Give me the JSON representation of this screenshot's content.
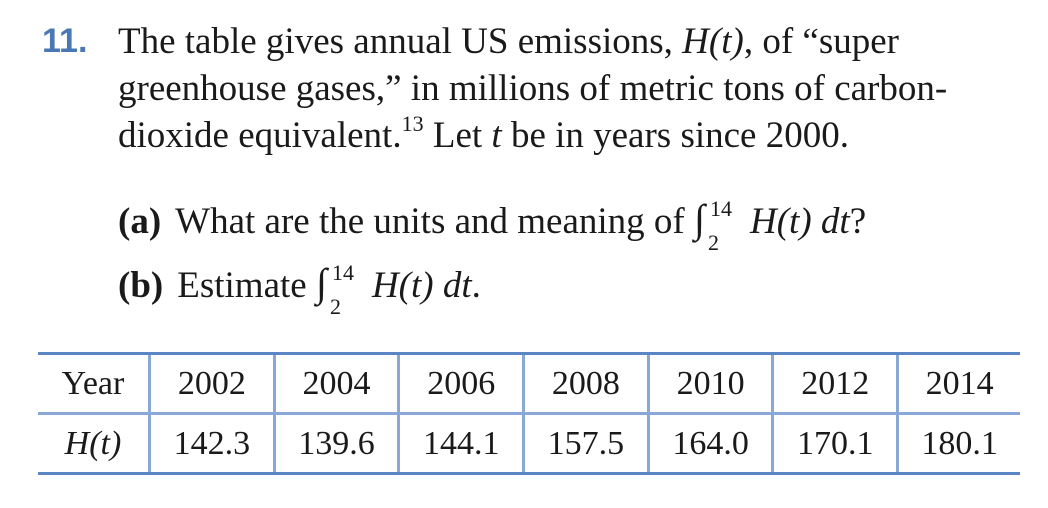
{
  "problem": {
    "number": "11.",
    "stem_lines": [
      "The table gives annual US emissions, ",
      "greenhouse gases,” in millions of metric tons of carbon-",
      "dioxide equivalent."
    ],
    "func": "H(t)",
    "after_func": ", of “super",
    "footnote": "13",
    "stem_tail_1": " Let ",
    "var_t": "t",
    "stem_tail_2": " be in years since 2000.",
    "part_a": {
      "label": "(a)",
      "text": "What are the units and meaning of",
      "integral_sign": "∫",
      "upper": "14",
      "lower": "2",
      "integrand": "H(t) dt",
      "end": "?"
    },
    "part_b": {
      "label": "(b)",
      "text": "Estimate",
      "integral_sign": "∫",
      "upper": "14",
      "lower": "2",
      "integrand": "H(t) dt",
      "end": "."
    }
  },
  "table": {
    "row_labels": [
      "Year",
      "H(t)"
    ],
    "years": [
      "2002",
      "2004",
      "2006",
      "2008",
      "2010",
      "2012",
      "2014"
    ],
    "values": [
      "142.3",
      "139.6",
      "144.1",
      "157.5",
      "164.0",
      "170.1",
      "180.1"
    ]
  }
}
